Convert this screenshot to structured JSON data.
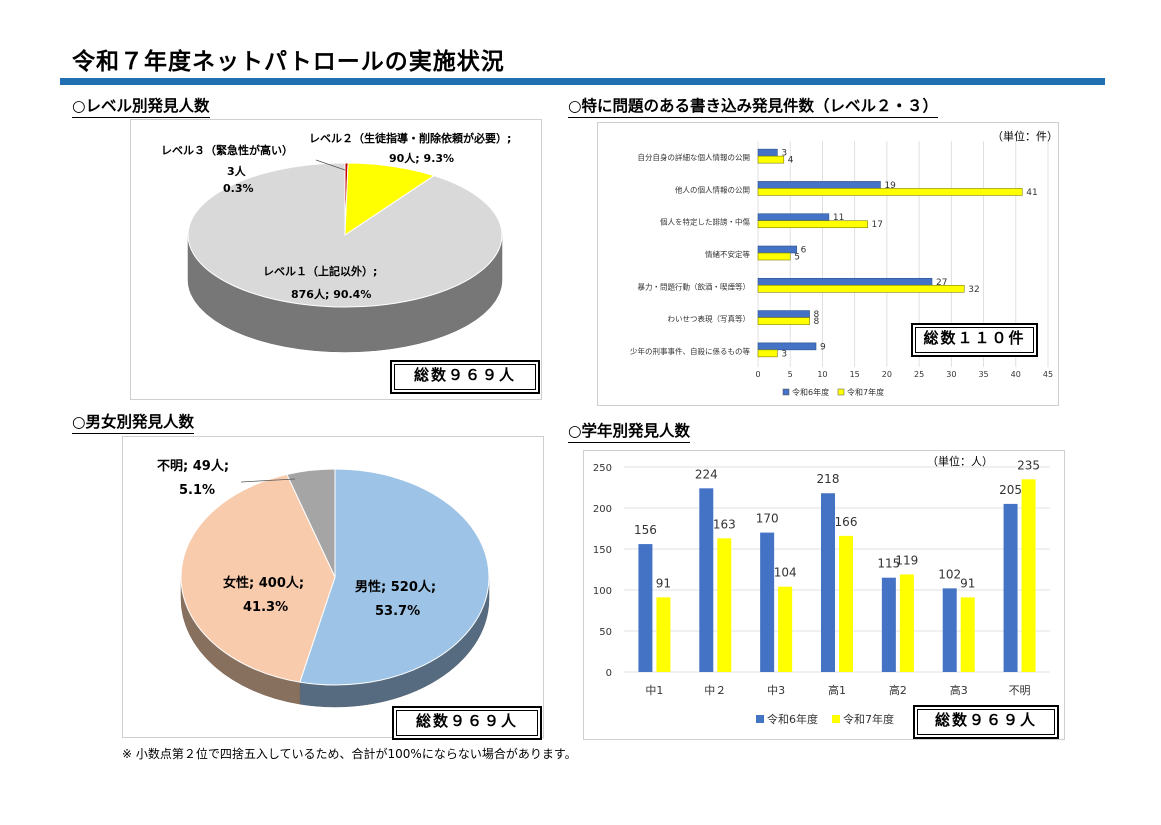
{
  "title": "令和７年度ネットパトロールの実施状況",
  "accent_color": "#1f6fb2",
  "footnote": "※ 小数点第２位で四捨五入しているため、合計が100%にならない場合があります。",
  "level": {
    "heading": "○レベル別発見人数",
    "total": "総数９６９人"
  },
  "gender": {
    "heading": "○男女別発見人数",
    "total": "総数９６９人"
  },
  "posts": {
    "heading": "○特に問題のある書き込み発見件数（レベル２・３）",
    "unit": "（単位：件）",
    "total": "総数１１０件"
  },
  "grade": {
    "heading": "○学年別発見人数",
    "unit": "（単位：人）",
    "total": "総数９６９人"
  },
  "chart_data": [
    {
      "type": "pie",
      "labels": [
        "レベル１（上記以外）",
        "レベル２（生徒指導・削除依頼が必要）",
        "レベル３（緊急性が高い）"
      ],
      "values": [
        876,
        90,
        3
      ],
      "value_labels": [
        "876人; 90.4%",
        "90人; 9.3%",
        "3人"
      ],
      "percent_labels": [
        "",
        "",
        "0.3%"
      ],
      "label_prefix": [
        "レベル１（上記以外）;",
        "レベル２（生徒指導・削除依頼が必要）;",
        "レベル３（緊急性が高い）"
      ],
      "colors": [
        "#d9d9d9",
        "#ffff00",
        "#c00000"
      ]
    },
    {
      "type": "pie",
      "labels": [
        "男性",
        "女性",
        "不明"
      ],
      "values": [
        520,
        400,
        49
      ],
      "value_labels": [
        "男性; 520人;",
        "女性; 400人;",
        "不明; 49人;"
      ],
      "percent_labels": [
        "53.7%",
        "41.3%",
        "5.1%"
      ],
      "colors": [
        "#9dc3e6",
        "#f8cbad",
        "#a5a5a5"
      ]
    },
    {
      "type": "bar",
      "orientation": "horizontal",
      "categories": [
        "自分自身の詳細な個人情報の公開",
        "他人の個人情報の公開",
        "個人を特定した誹謗・中傷",
        "情緒不安定等",
        "暴力・問題行動（飲酒・喫煙等）",
        "わいせつ表現（写真等）",
        "少年の刑事事件、自殺に係るもの等"
      ],
      "series": [
        {
          "name": "令和6年度",
          "values": [
            3,
            19,
            11,
            6,
            27,
            8,
            9
          ],
          "color": "#4472c4"
        },
        {
          "name": "令和7年度",
          "values": [
            4,
            41,
            17,
            5,
            32,
            8,
            3
          ],
          "color": "#ffff00"
        }
      ],
      "xlim": [
        0,
        45
      ],
      "ticks": [
        0,
        5,
        10,
        15,
        20,
        25,
        30,
        35,
        40,
        45
      ]
    },
    {
      "type": "bar",
      "categories": [
        "中1",
        "中２",
        "中3",
        "高1",
        "高2",
        "高3",
        "不明"
      ],
      "series": [
        {
          "name": "令和6年度",
          "values": [
            156,
            224,
            170,
            218,
            115,
            102,
            205
          ],
          "color": "#4472c4"
        },
        {
          "name": "令和7年度",
          "values": [
            91,
            163,
            104,
            166,
            119,
            91,
            235
          ],
          "color": "#ffff00"
        }
      ],
      "ylim": [
        0,
        250
      ],
      "ticks": [
        0,
        50,
        100,
        150,
        200,
        250
      ]
    }
  ]
}
